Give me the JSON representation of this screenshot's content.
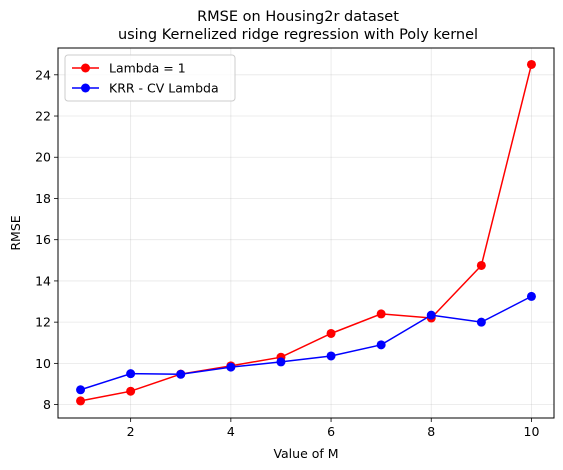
{
  "chart_data": {
    "type": "line",
    "title_line1": "RMSE on Housing2r dataset",
    "title_line2": "using Kernelized ridge regression with Poly kernel",
    "xlabel": "Value of M",
    "ylabel": "RMSE",
    "xlim": [
      0.55,
      10.45
    ],
    "ylim": [
      7.35,
      25.3
    ],
    "xticks": [
      2,
      4,
      6,
      8,
      10
    ],
    "xtick_labels": [
      "2",
      "4",
      "6",
      "8",
      "10"
    ],
    "yticks": [
      8,
      10,
      12,
      14,
      16,
      18,
      20,
      22,
      24
    ],
    "ytick_labels": [
      "8",
      "10",
      "12",
      "14",
      "16",
      "18",
      "20",
      "22",
      "24"
    ],
    "grid": true,
    "legend_position": "upper-left",
    "x": [
      1,
      2,
      3,
      4,
      5,
      6,
      7,
      8,
      9,
      10
    ],
    "series": [
      {
        "name": "Lambda = 1",
        "color": "#ff0000",
        "values": [
          8.18,
          8.65,
          9.48,
          9.88,
          10.3,
          11.45,
          12.4,
          12.2,
          14.75,
          24.5
        ]
      },
      {
        "name": "KRR - CV Lambda",
        "color": "#0000ff",
        "values": [
          8.72,
          9.5,
          9.47,
          9.82,
          10.07,
          10.36,
          10.9,
          12.34,
          12.0,
          13.25
        ]
      }
    ]
  }
}
